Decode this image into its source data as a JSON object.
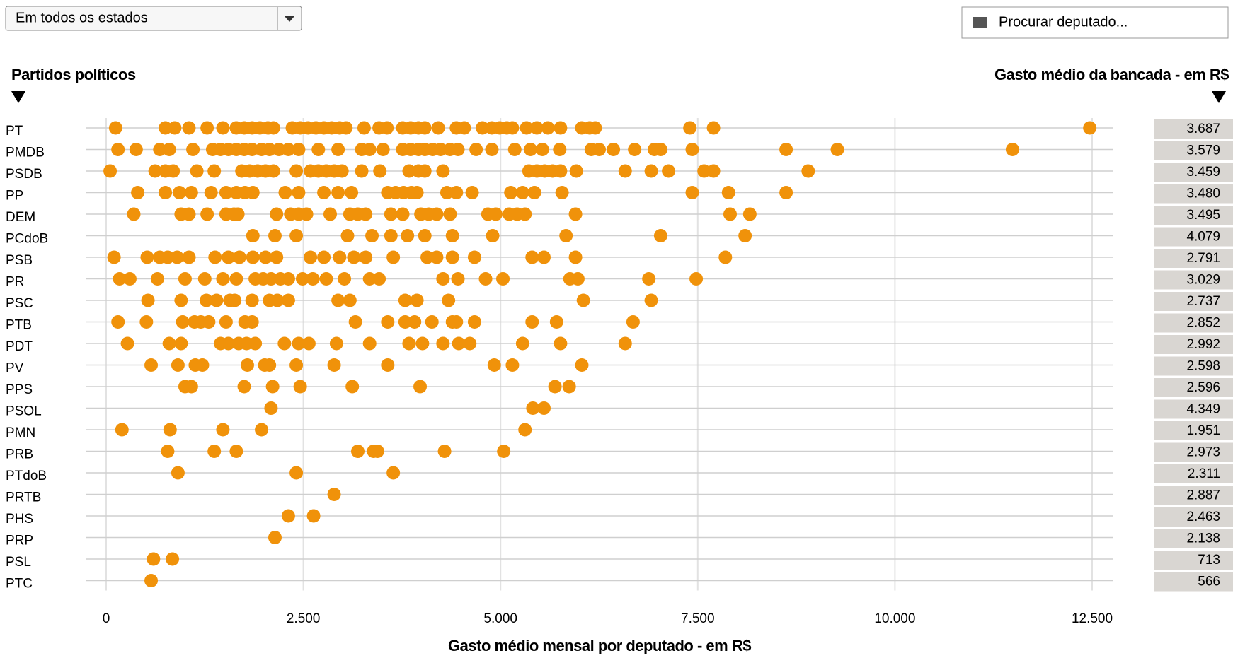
{
  "controls": {
    "state_select": "Em todos os estados",
    "search_placeholder": "Procurar deputado..."
  },
  "chart_data": {
    "type": "strip",
    "left_heading": "Partidos políticos",
    "right_heading": "Gasto médio da bancada - em R$",
    "x_label": "Gasto médio mensal por deputado - em R$",
    "color": "#f0920a",
    "grid": true,
    "xlim": [
      0,
      12500
    ],
    "xticks": [
      0,
      {
        "value": 2500,
        "label": "2.500"
      },
      {
        "value": 5000,
        "label": "5.000"
      },
      {
        "value": 7500,
        "label": "7.500"
      },
      {
        "value": 10000,
        "label": "10.000"
      },
      {
        "value": 12500,
        "label": "12.500"
      }
    ],
    "rows": [
      {
        "party": "PT",
        "average": 3687,
        "average_label": "3.687",
        "values": [
          120,
          750,
          870,
          1050,
          1280,
          1480,
          1650,
          1750,
          1850,
          1950,
          2050,
          2120,
          2360,
          2460,
          2560,
          2660,
          2760,
          2860,
          2960,
          3040,
          3270,
          3460,
          3560,
          3760,
          3860,
          3960,
          4040,
          4210,
          4440,
          4540,
          4770,
          4890,
          4990,
          5080,
          5150,
          5330,
          5460,
          5600,
          5760,
          6030,
          6130,
          6200,
          7400,
          7700,
          12470
        ]
      },
      {
        "party": "PMDB",
        "average": 3579,
        "average_label": "3.579",
        "values": [
          150,
          380,
          680,
          800,
          1100,
          1350,
          1450,
          1550,
          1650,
          1750,
          1850,
          1970,
          2070,
          2190,
          2310,
          2440,
          2690,
          2940,
          3240,
          3340,
          3510,
          3760,
          3860,
          3960,
          4040,
          4140,
          4240,
          4360,
          4460,
          4690,
          4890,
          5180,
          5380,
          5530,
          5750,
          6150,
          6250,
          6430,
          6700,
          6950,
          7030,
          7430,
          8620,
          9270,
          11490
        ]
      },
      {
        "party": "PSDB",
        "average": 3459,
        "average_label": "3.459",
        "values": [
          50,
          620,
          750,
          850,
          1150,
          1370,
          1720,
          1820,
          1920,
          2020,
          2120,
          2410,
          2590,
          2690,
          2790,
          2890,
          2990,
          3240,
          3470,
          3840,
          3960,
          4040,
          4270,
          5360,
          5460,
          5560,
          5660,
          5760,
          5960,
          6580,
          6910,
          7130,
          7580,
          7700,
          8900
        ]
      },
      {
        "party": "PP",
        "average": 3480,
        "average_label": "3.480",
        "values": [
          400,
          750,
          930,
          1080,
          1330,
          1520,
          1650,
          1760,
          1860,
          2270,
          2440,
          2760,
          2940,
          3110,
          3570,
          3670,
          3770,
          3870,
          3940,
          4320,
          4440,
          4640,
          5130,
          5280,
          5430,
          5780,
          7430,
          7890,
          8620
        ]
      },
      {
        "party": "DEM",
        "average": 3495,
        "average_label": "3.495",
        "values": [
          350,
          950,
          1050,
          1280,
          1520,
          1620,
          1670,
          2160,
          2340,
          2440,
          2540,
          2840,
          3090,
          3190,
          3290,
          3610,
          3760,
          3990,
          4090,
          4190,
          4360,
          4840,
          4940,
          5110,
          5210,
          5310,
          5950,
          7910,
          8160
        ]
      },
      {
        "party": "PCdoB",
        "average": 4079,
        "average_label": "4.079",
        "values": [
          1860,
          2140,
          2410,
          3060,
          3370,
          3610,
          3820,
          4040,
          4390,
          4900,
          5830,
          7030,
          8100
        ]
      },
      {
        "party": "PSB",
        "average": 2791,
        "average_label": "2.791",
        "values": [
          100,
          520,
          680,
          780,
          900,
          1050,
          1380,
          1550,
          1690,
          1860,
          2020,
          2160,
          2590,
          2760,
          2960,
          3140,
          3290,
          3640,
          4070,
          4190,
          4390,
          4670,
          5400,
          5550,
          5950,
          7850
        ]
      },
      {
        "party": "PR",
        "average": 3029,
        "average_label": "3.029",
        "values": [
          170,
          300,
          650,
          1000,
          1250,
          1480,
          1650,
          1890,
          1990,
          2090,
          2210,
          2310,
          2490,
          2620,
          2790,
          3020,
          3340,
          3460,
          4270,
          4460,
          4810,
          5030,
          5880,
          5980,
          6880,
          7480
        ]
      },
      {
        "party": "PSC",
        "average": 2737,
        "average_label": "2.737",
        "values": [
          530,
          950,
          1270,
          1400,
          1570,
          1630,
          1850,
          2070,
          2170,
          2310,
          2940,
          3090,
          3790,
          3940,
          4340,
          6050,
          6910
        ]
      },
      {
        "party": "PTB",
        "average": 2852,
        "average_label": "2.852",
        "values": [
          150,
          510,
          970,
          1120,
          1200,
          1300,
          1520,
          1760,
          1850,
          3160,
          3570,
          3790,
          3910,
          4130,
          4390,
          4440,
          4670,
          5400,
          5710,
          6680
        ]
      },
      {
        "party": "PDT",
        "average": 2992,
        "average_label": "2.992",
        "values": [
          270,
          800,
          950,
          1450,
          1550,
          1680,
          1780,
          1890,
          2260,
          2440,
          2570,
          2920,
          3340,
          3840,
          4010,
          4270,
          4470,
          4610,
          5280,
          5760,
          6580
        ]
      },
      {
        "party": "PV",
        "average": 2598,
        "average_label": "2.598",
        "values": [
          570,
          910,
          1130,
          1220,
          1790,
          2010,
          2070,
          2410,
          2890,
          3570,
          4920,
          5150,
          6030
        ]
      },
      {
        "party": "PPS",
        "average": 2596,
        "average_label": "2.596",
        "values": [
          1000,
          1080,
          1750,
          2110,
          2460,
          3120,
          3980,
          5690,
          5870
        ]
      },
      {
        "party": "PSOL",
        "average": 4349,
        "average_label": "4.349",
        "values": [
          2090,
          5410,
          5550
        ]
      },
      {
        "party": "PMN",
        "average": 1951,
        "average_label": "1.951",
        "values": [
          200,
          810,
          1480,
          1970,
          5310
        ]
      },
      {
        "party": "PRB",
        "average": 2973,
        "average_label": "2.973",
        "values": [
          780,
          1370,
          1650,
          3190,
          3390,
          3440,
          4290,
          5040
        ]
      },
      {
        "party": "PTdoB",
        "average": 2311,
        "average_label": "2.311",
        "values": [
          910,
          2410,
          3640
        ]
      },
      {
        "party": "PRTB",
        "average": 2887,
        "average_label": "2.887",
        "values": [
          2890
        ]
      },
      {
        "party": "PHS",
        "average": 2463,
        "average_label": "2.463",
        "values": [
          2310,
          2630
        ]
      },
      {
        "party": "PRP",
        "average": 2138,
        "average_label": "2.138",
        "values": [
          2140
        ]
      },
      {
        "party": "PSL",
        "average": 713,
        "average_label": "713",
        "values": [
          600,
          840
        ]
      },
      {
        "party": "PTC",
        "average": 566,
        "average_label": "566",
        "values": [
          570
        ]
      }
    ]
  }
}
